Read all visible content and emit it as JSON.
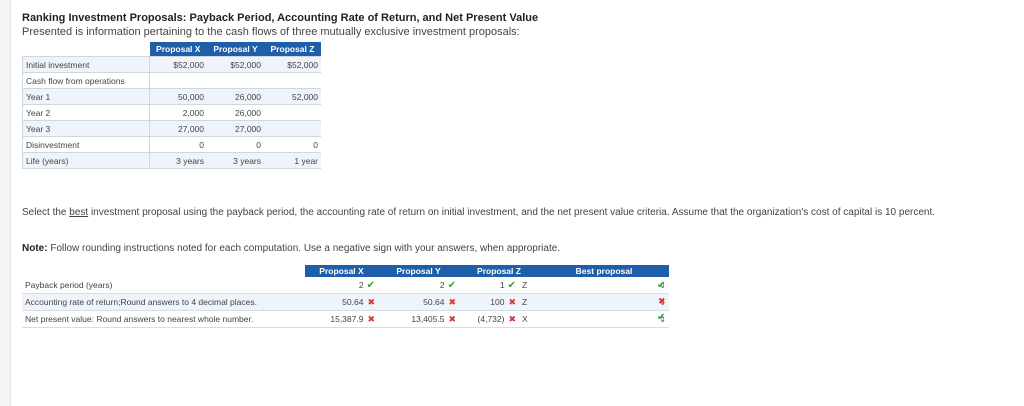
{
  "title": "Ranking Investment Proposals: Payback Period, Accounting Rate of Return, and Net Present Value",
  "intro": "Presented is information pertaining to the cash flows of three mutually exclusive investment proposals:",
  "cash_flow_table": {
    "headers": [
      "Proposal X",
      "Proposal Y",
      "Proposal Z"
    ],
    "rows": [
      {
        "label": "Initial investment",
        "values": [
          "$52,000",
          "$52,000",
          "$52,000"
        ]
      },
      {
        "label": "Cash flow from operations",
        "values": [
          "",
          "",
          ""
        ]
      },
      {
        "label": "Year 1",
        "values": [
          "50,000",
          "26,000",
          "52,000"
        ]
      },
      {
        "label": "Year 2",
        "values": [
          "2,000",
          "26,000",
          ""
        ]
      },
      {
        "label": "Year 3",
        "values": [
          "27,000",
          "27,000",
          ""
        ]
      },
      {
        "label": "Disinvestment",
        "values": [
          "0",
          "0",
          "0"
        ]
      },
      {
        "label": "Life (years)",
        "values": [
          "3 years",
          "3 years",
          "1 year"
        ]
      }
    ]
  },
  "instructions": {
    "pre": "Select the ",
    "underlined": "best",
    "post": " investment proposal  using the payback period, the accounting rate of return on initial investment, and the net present value criteria. Assume that the organization's cost of capital is 10 percent."
  },
  "note": {
    "label": "Note:",
    "text": " Follow rounding instructions noted for each computation.  Use a negative sign with your answers, when appropriate."
  },
  "answer_table": {
    "headers": {
      "x": "Proposal X",
      "y": "Proposal Y",
      "z": "Proposal Z",
      "best": "Best proposal"
    },
    "rows": [
      {
        "label": "Payback period (years)",
        "x": "2",
        "x_status": "correct",
        "y": "2",
        "y_status": "correct",
        "z": "1",
        "z_status": "correct",
        "z_rank": "Z",
        "best_status": "correct"
      },
      {
        "label": "Accounting rate of return;Round answers to 4 decimal places.",
        "x": "50.64",
        "x_status": "incorrect",
        "y": "50.64",
        "y_status": "incorrect",
        "z": "100",
        "z_status": "incorrect",
        "z_rank": "Z",
        "best_status": "incorrect"
      },
      {
        "label": "Net present value: Round answers to nearest whole number.",
        "x": "15,387.9",
        "x_status": "incorrect",
        "y": "13,405.5",
        "y_status": "incorrect",
        "z": "(4,732)",
        "z_status": "incorrect",
        "z_rank": "X",
        "best_status": "correct"
      }
    ]
  },
  "icons": {
    "correct": "check-icon",
    "incorrect": "cross-icon",
    "select": "select-arrows-icon"
  },
  "colors": {
    "header_bg": "#1f5ea8",
    "correct": "#3aa23a",
    "incorrect": "#d43a3a",
    "row_alt": "#eef4fa"
  }
}
